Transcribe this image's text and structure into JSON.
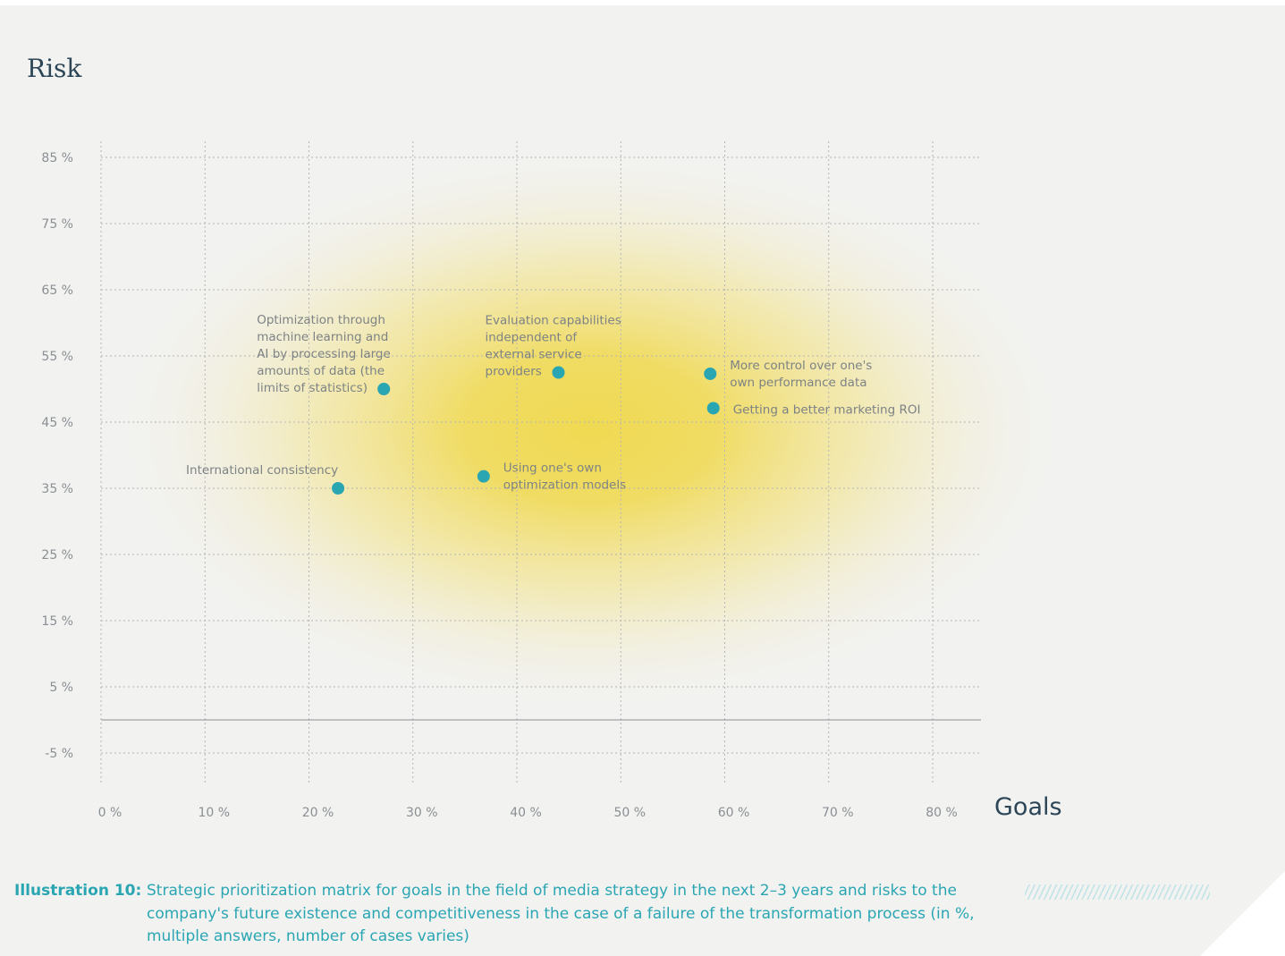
{
  "chart_data": {
    "type": "scatter",
    "ylabel": "Risk",
    "xlabel": "Goals",
    "xlim": [
      0,
      85
    ],
    "ylim": [
      -8,
      85
    ],
    "x_ticks": [
      0,
      10,
      20,
      30,
      40,
      50,
      60,
      70,
      80
    ],
    "y_ticks": [
      -5,
      5,
      15,
      25,
      35,
      45,
      55,
      65,
      75,
      85
    ],
    "x_tick_labels": [
      "0 %",
      "10 %",
      "20 %",
      "30 %",
      "40 %",
      "50 %",
      "60 %",
      "70 %",
      "80 %"
    ],
    "y_tick_labels": [
      "-5 %",
      "5 %",
      "15 %",
      "25 %",
      "35 %",
      "45 %",
      "55 %",
      "65 %",
      "75 %",
      "85 %"
    ],
    "grid": true,
    "point_color": "#2aa6b3",
    "highlight_color": "#f0d84a",
    "points": [
      {
        "x": 27.2,
        "y": 50.0,
        "label_lines": [
          "Optimization through",
          "machine learning and",
          "AI by processing large",
          "amounts of data (the",
          "limits of statistics)"
        ],
        "label_side": "left"
      },
      {
        "x": 44.0,
        "y": 52.5,
        "label_lines": [
          "Evaluation capabilities",
          "independent of",
          "external service",
          "providers"
        ],
        "label_side": "left"
      },
      {
        "x": 58.6,
        "y": 52.3,
        "label_lines": [
          "More control over one's",
          "own performance data"
        ],
        "label_side": "right"
      },
      {
        "x": 58.9,
        "y": 47.1,
        "label_lines": [
          "Getting a better marketing ROI"
        ],
        "label_side": "right"
      },
      {
        "x": 22.8,
        "y": 35.0,
        "label_lines": [
          "International consistency"
        ],
        "label_side": "above-left"
      },
      {
        "x": 36.8,
        "y": 36.8,
        "label_lines": [
          "Using one's own",
          "optimization models"
        ],
        "label_side": "right"
      }
    ]
  },
  "caption": {
    "lead": "Illustration 10:",
    "text": "Strategic prioritization matrix for goals in the field of media strategy in the next 2–3 years and risks to the company's future existence and competitiveness in the case of a failure of the transformation process (in %, multiple answers, number of cases varies)"
  }
}
